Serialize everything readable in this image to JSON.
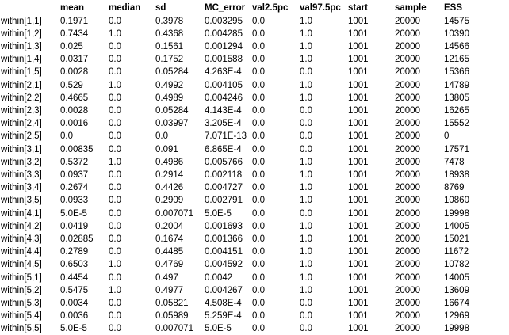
{
  "table": {
    "headers": [
      "",
      "mean",
      "median",
      "sd",
      "MC_error",
      "val2.5pc",
      "val97.5pc",
      "start",
      "sample",
      "ESS"
    ],
    "rows": [
      [
        "within[1,1]",
        "0.1971",
        "0.0",
        "0.3978",
        "0.003295",
        "0.0",
        "1.0",
        "1001",
        "20000",
        "14575"
      ],
      [
        "within[1,2]",
        "0.7434",
        "1.0",
        "0.4368",
        "0.004285",
        "0.0",
        "1.0",
        "1001",
        "20000",
        "10390"
      ],
      [
        "within[1,3]",
        "0.025",
        "0.0",
        "0.1561",
        "0.001294",
        "0.0",
        "1.0",
        "1001",
        "20000",
        "14566"
      ],
      [
        "within[1,4]",
        "0.0317",
        "0.0",
        "0.1752",
        "0.001588",
        "0.0",
        "1.0",
        "1001",
        "20000",
        "12165"
      ],
      [
        "within[1,5]",
        "0.0028",
        "0.0",
        "0.05284",
        "4.263E-4",
        "0.0",
        "0.0",
        "1001",
        "20000",
        "15366"
      ],
      [
        "within[2,1]",
        "0.529",
        "1.0",
        "0.4992",
        "0.004105",
        "0.0",
        "1.0",
        "1001",
        "20000",
        "14789"
      ],
      [
        "within[2,2]",
        "0.4665",
        "0.0",
        "0.4989",
        "0.004246",
        "0.0",
        "1.0",
        "1001",
        "20000",
        "13805"
      ],
      [
        "within[2,3]",
        "0.0028",
        "0.0",
        "0.05284",
        "4.143E-4",
        "0.0",
        "0.0",
        "1001",
        "20000",
        "16265"
      ],
      [
        "within[2,4]",
        "0.0016",
        "0.0",
        "0.03997",
        "3.205E-4",
        "0.0",
        "0.0",
        "1001",
        "20000",
        "15552"
      ],
      [
        "within[2,5]",
        "0.0",
        "0.0",
        "0.0",
        "7.071E-13",
        "0.0",
        "0.0",
        "1001",
        "20000",
        "0"
      ],
      [
        "within[3,1]",
        "0.00835",
        "0.0",
        "0.091",
        "6.865E-4",
        "0.0",
        "0.0",
        "1001",
        "20000",
        "17571"
      ],
      [
        "within[3,2]",
        "0.5372",
        "1.0",
        "0.4986",
        "0.005766",
        "0.0",
        "1.0",
        "1001",
        "20000",
        "7478"
      ],
      [
        "within[3,3]",
        "0.0937",
        "0.0",
        "0.2914",
        "0.002118",
        "0.0",
        "1.0",
        "1001",
        "20000",
        "18938"
      ],
      [
        "within[3,4]",
        "0.2674",
        "0.0",
        "0.4426",
        "0.004727",
        "0.0",
        "1.0",
        "1001",
        "20000",
        "8769"
      ],
      [
        "within[3,5]",
        "0.0933",
        "0.0",
        "0.2909",
        "0.002791",
        "0.0",
        "1.0",
        "1001",
        "20000",
        "10860"
      ],
      [
        "within[4,1]",
        "5.0E-5",
        "0.0",
        "0.007071",
        "5.0E-5",
        "0.0",
        "0.0",
        "1001",
        "20000",
        "19998"
      ],
      [
        "within[4,2]",
        "0.0419",
        "0.0",
        "0.2004",
        "0.001693",
        "0.0",
        "1.0",
        "1001",
        "20000",
        "14005"
      ],
      [
        "within[4,3]",
        "0.02885",
        "0.0",
        "0.1674",
        "0.001366",
        "0.0",
        "1.0",
        "1001",
        "20000",
        "15021"
      ],
      [
        "within[4,4]",
        "0.2789",
        "0.0",
        "0.4485",
        "0.004151",
        "0.0",
        "1.0",
        "1001",
        "20000",
        "11672"
      ],
      [
        "within[4,5]",
        "0.6503",
        "1.0",
        "0.4769",
        "0.004592",
        "0.0",
        "1.0",
        "1001",
        "20000",
        "10782"
      ],
      [
        "within[5,1]",
        "0.4454",
        "0.0",
        "0.497",
        "0.0042",
        "0.0",
        "1.0",
        "1001",
        "20000",
        "14005"
      ],
      [
        "within[5,2]",
        "0.5475",
        "1.0",
        "0.4977",
        "0.004267",
        "0.0",
        "1.0",
        "1001",
        "20000",
        "13609"
      ],
      [
        "within[5,3]",
        "0.0034",
        "0.0",
        "0.05821",
        "4.508E-4",
        "0.0",
        "0.0",
        "1001",
        "20000",
        "16674"
      ],
      [
        "within[5,4]",
        "0.0036",
        "0.0",
        "0.05989",
        "5.259E-4",
        "0.0",
        "0.0",
        "1001",
        "20000",
        "12969"
      ],
      [
        "within[5,5]",
        "5.0E-5",
        "0.0",
        "0.007071",
        "5.0E-5",
        "0.0",
        "0.0",
        "1001",
        "20000",
        "19998"
      ]
    ]
  }
}
